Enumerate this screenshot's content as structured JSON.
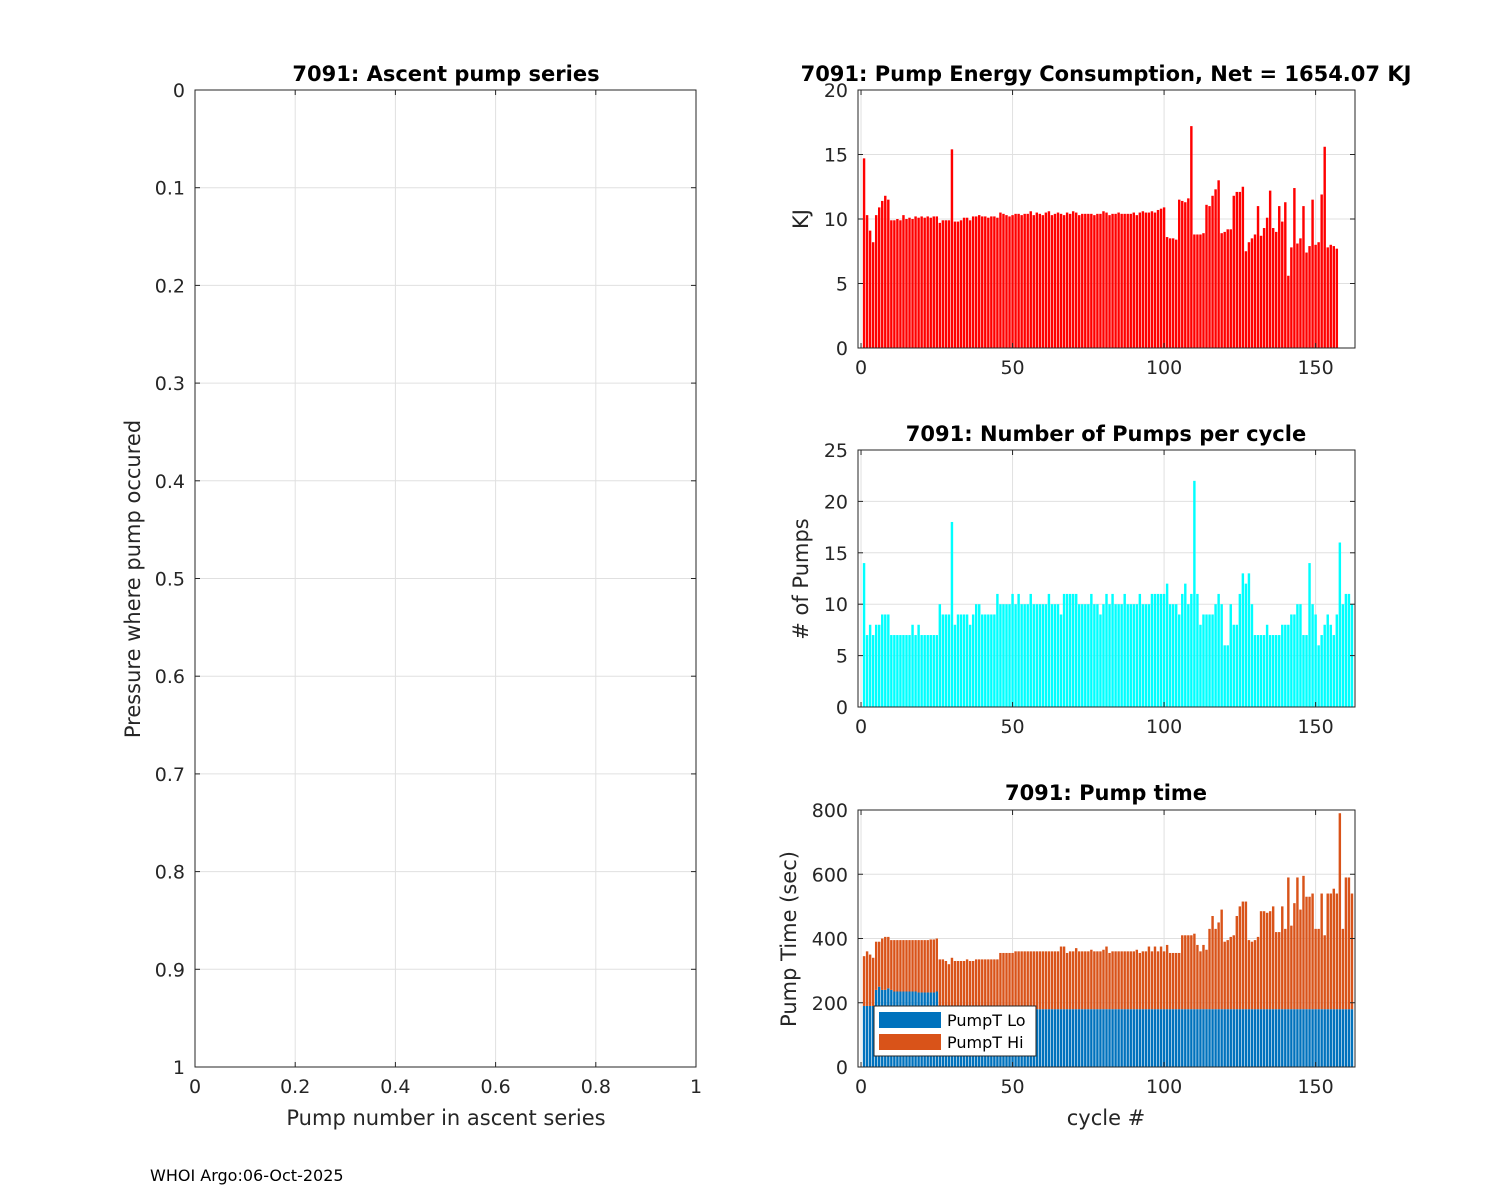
{
  "footer": "WHOI Argo:06-Oct-2025",
  "chart_data": [
    {
      "type": "line",
      "title": "7091: Ascent pump series",
      "xlabel": "Pump number in ascent series",
      "ylabel": "Pressure where pump occured",
      "xlim": [
        0,
        1
      ],
      "ylim": [
        0,
        1
      ],
      "y_reversed": true,
      "xticks": [
        "0",
        "0.2",
        "0.4",
        "0.6",
        "0.8",
        "1"
      ],
      "yticks": [
        "0",
        "0.1",
        "0.2",
        "0.3",
        "0.4",
        "0.5",
        "0.6",
        "0.7",
        "0.8",
        "0.9",
        "1"
      ],
      "grid": true,
      "series": []
    },
    {
      "type": "bar",
      "title": "7091: Pump Energy Consumption,  Net = 1654.07 KJ",
      "xlabel": "",
      "ylabel": "KJ",
      "xlim": [
        -1,
        163
      ],
      "ylim": [
        0,
        20
      ],
      "xticks": [
        "0",
        "50",
        "100",
        "150"
      ],
      "yticks": [
        "0",
        "5",
        "10",
        "15",
        "20"
      ],
      "grid": true,
      "color": "#ff0000",
      "x_start": 1,
      "values": [
        14.7,
        10.3,
        9.1,
        8.2,
        10.3,
        10.9,
        11.4,
        11.8,
        11.5,
        9.9,
        9.9,
        10.0,
        9.9,
        10.3,
        10.0,
        10.1,
        10.0,
        10.2,
        10.1,
        10.2,
        10.1,
        10.2,
        10.1,
        10.2,
        10.2,
        9.7,
        9.9,
        9.9,
        9.9,
        15.4,
        9.8,
        9.8,
        9.9,
        10.1,
        10.1,
        9.9,
        10.2,
        10.2,
        10.3,
        10.2,
        10.2,
        10.1,
        10.2,
        10.2,
        10.1,
        10.5,
        10.4,
        10.3,
        10.2,
        10.3,
        10.4,
        10.4,
        10.3,
        10.4,
        10.4,
        10.6,
        10.3,
        10.5,
        10.4,
        10.3,
        10.5,
        10.6,
        10.3,
        10.4,
        10.5,
        10.4,
        10.3,
        10.5,
        10.4,
        10.6,
        10.5,
        10.3,
        10.4,
        10.4,
        10.4,
        10.4,
        10.3,
        10.4,
        10.4,
        10.6,
        10.5,
        10.3,
        10.4,
        10.4,
        10.5,
        10.4,
        10.4,
        10.4,
        10.4,
        10.5,
        10.3,
        10.5,
        10.6,
        10.5,
        10.5,
        10.6,
        10.5,
        10.7,
        10.8,
        10.9,
        8.6,
        8.5,
        8.5,
        8.4,
        11.5,
        11.4,
        11.3,
        11.6,
        17.2,
        8.8,
        8.8,
        8.8,
        8.9,
        11.1,
        11.0,
        11.8,
        12.3,
        13.0,
        8.9,
        9.0,
        9.2,
        9.2,
        11.8,
        12.1,
        12.1,
        12.5,
        7.5,
        8.2,
        8.5,
        8.8,
        11.0,
        8.7,
        9.3,
        10.1,
        12.2,
        9.3,
        9.0,
        11.0,
        9.8,
        11.3,
        5.6,
        7.8,
        12.4,
        8.1,
        8.5,
        11.0,
        7.4,
        7.9,
        11.5,
        8.0,
        8.2,
        11.9,
        15.6,
        7.8,
        8.0,
        7.9,
        7.7
      ]
    },
    {
      "type": "bar",
      "title": "7091: Number of Pumps per cycle",
      "xlabel": "",
      "ylabel": "# of Pumps",
      "xlim": [
        -1,
        163
      ],
      "ylim": [
        0,
        25
      ],
      "xticks": [
        "0",
        "50",
        "100",
        "150"
      ],
      "yticks": [
        "0",
        "5",
        "10",
        "15",
        "20",
        "25"
      ],
      "grid": true,
      "color": "#00ffff",
      "x_start": 1,
      "values": [
        14,
        7,
        8,
        7,
        8,
        8,
        9,
        9,
        9,
        7,
        7,
        7,
        7,
        7,
        7,
        7,
        8,
        7,
        8,
        7,
        7,
        7,
        7,
        7,
        7,
        10,
        9,
        9,
        9,
        18,
        8,
        9,
        9,
        9,
        9,
        8,
        9,
        10,
        10,
        9,
        9,
        9,
        9,
        9,
        11,
        10,
        10,
        10,
        10,
        11,
        10,
        11,
        10,
        10,
        10,
        11,
        10,
        10,
        10,
        10,
        10,
        11,
        10,
        10,
        10,
        9,
        11,
        11,
        11,
        11,
        11,
        10,
        10,
        10,
        10,
        11,
        10,
        10,
        9,
        10,
        11,
        10,
        11,
        10,
        10,
        10,
        11,
        10,
        10,
        10,
        10,
        11,
        10,
        10,
        10,
        11,
        11,
        11,
        11,
        11,
        12,
        10,
        10,
        10,
        9,
        11,
        12,
        10,
        11,
        22,
        11,
        8,
        9,
        9,
        9,
        9,
        10,
        11,
        10,
        6,
        6,
        10,
        8,
        8,
        11,
        13,
        12,
        13,
        10,
        7,
        7,
        7,
        7,
        8,
        7,
        7,
        7,
        7,
        8,
        8,
        8,
        9,
        9,
        10,
        10,
        7,
        7,
        14,
        10,
        9,
        6,
        7,
        8,
        9,
        8,
        7,
        9,
        16,
        10,
        11,
        11,
        10
      ]
    },
    {
      "type": "bar",
      "stacked": true,
      "title": "7091: Pump time",
      "xlabel": "cycle #",
      "ylabel": "Pump Time (sec)",
      "xlim": [
        -1,
        163
      ],
      "ylim": [
        0,
        800
      ],
      "xticks": [
        "0",
        "50",
        "100",
        "150"
      ],
      "yticks": [
        "0",
        "200",
        "400",
        "600",
        "800"
      ],
      "grid": true,
      "legend": "bottom-left",
      "x_start": 1,
      "series": [
        {
          "name": "PumpT Lo",
          "color": "#0072bd",
          "values": [
            190,
            190,
            190,
            190,
            240,
            250,
            240,
            240,
            245,
            240,
            235,
            235,
            235,
            235,
            235,
            235,
            235,
            235,
            232,
            232,
            232,
            232,
            232,
            232,
            235,
            180,
            180,
            180,
            180,
            180,
            180,
            180,
            180,
            180,
            180,
            180,
            180,
            180,
            180,
            180,
            180,
            180,
            180,
            180,
            180,
            180,
            180,
            180,
            180,
            180,
            180,
            180,
            180,
            180,
            180,
            180,
            180,
            180,
            180,
            180,
            180,
            180,
            180,
            180,
            180,
            180,
            180,
            180,
            180,
            180,
            180,
            180,
            180,
            180,
            180,
            180,
            180,
            180,
            180,
            180,
            180,
            180,
            180,
            180,
            180,
            180,
            180,
            180,
            180,
            180,
            180,
            180,
            180,
            180,
            180,
            180,
            180,
            180,
            180,
            180,
            180,
            180,
            180,
            180,
            180,
            180,
            180,
            180,
            180,
            180,
            180,
            180,
            180,
            180,
            180,
            180,
            180,
            180,
            180,
            180,
            180,
            180,
            180,
            180,
            180,
            180,
            180,
            180,
            180,
            180,
            180,
            180,
            180,
            180,
            180,
            180,
            180,
            180,
            180,
            180,
            180,
            180,
            180,
            180,
            180,
            180,
            180,
            180,
            180,
            180,
            180,
            180,
            180,
            180,
            180,
            180,
            180,
            180,
            180,
            180,
            180,
            180
          ]
        },
        {
          "name": "PumpT Hi",
          "color": "#d95319",
          "values": [
            155,
            170,
            160,
            150,
            150,
            140,
            160,
            165,
            160,
            155,
            160,
            160,
            160,
            160,
            160,
            160,
            160,
            160,
            163,
            163,
            163,
            163,
            165,
            165,
            165,
            155,
            155,
            150,
            140,
            160,
            150,
            150,
            150,
            150,
            155,
            150,
            150,
            155,
            155,
            155,
            155,
            155,
            155,
            155,
            155,
            175,
            175,
            175,
            175,
            175,
            180,
            180,
            180,
            180,
            180,
            180,
            180,
            180,
            180,
            180,
            180,
            180,
            180,
            180,
            180,
            195,
            195,
            175,
            180,
            180,
            190,
            180,
            180,
            180,
            180,
            185,
            180,
            180,
            180,
            185,
            195,
            175,
            180,
            180,
            180,
            180,
            180,
            180,
            180,
            180,
            185,
            175,
            180,
            180,
            195,
            180,
            195,
            180,
            195,
            180,
            200,
            175,
            175,
            175,
            175,
            230,
            230,
            230,
            230,
            235,
            200,
            180,
            200,
            185,
            250,
            290,
            250,
            270,
            310,
            210,
            215,
            225,
            230,
            290,
            320,
            335,
            335,
            215,
            210,
            215,
            225,
            305,
            305,
            300,
            305,
            320,
            240,
            240,
            320,
            250,
            410,
            260,
            330,
            410,
            310,
            415,
            350,
            350,
            360,
            250,
            250,
            360,
            230,
            360,
            360,
            375,
            360,
            610,
            250,
            410,
            410,
            360
          ]
        }
      ]
    }
  ]
}
